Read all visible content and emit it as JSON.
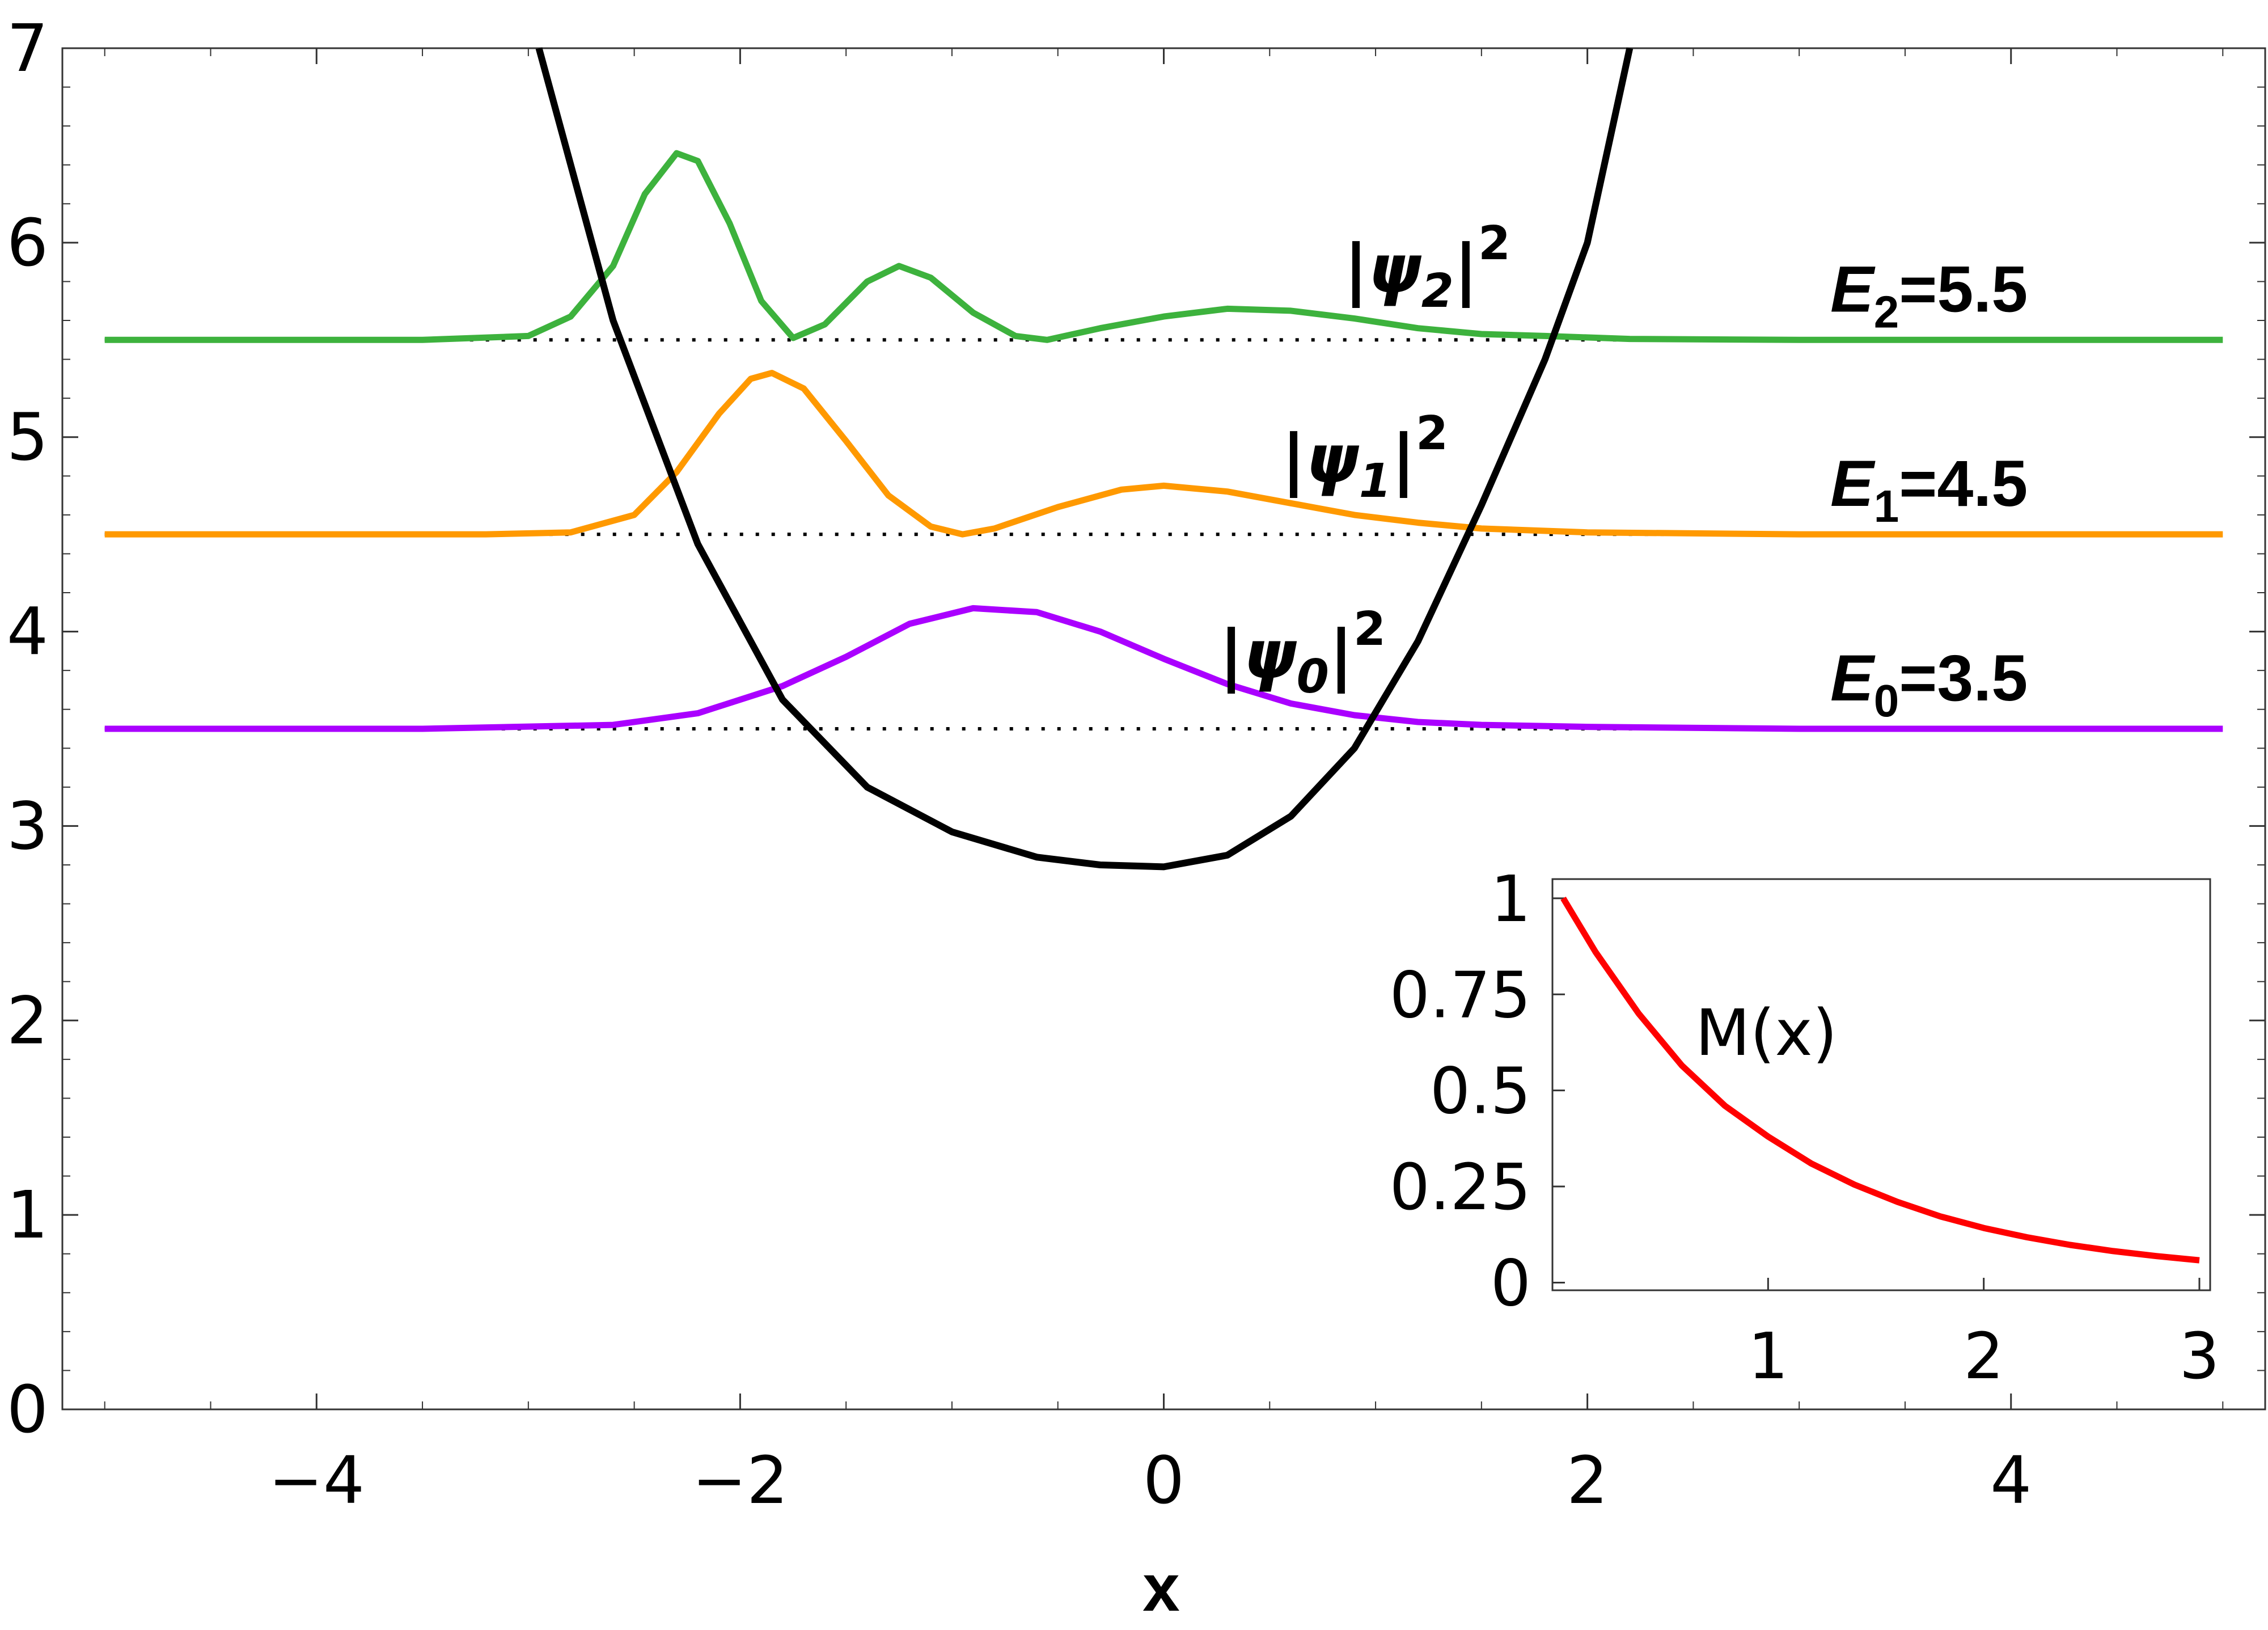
{
  "chart_data": [
    {
      "type": "line",
      "xlabel": "x",
      "xlim": [
        -5.2,
        5.2
      ],
      "ylim": [
        0,
        7
      ],
      "x_ticks": [
        "−4",
        "−2",
        "0",
        "2",
        "4"
      ],
      "y_ticks": [
        "0",
        "1",
        "2",
        "3",
        "4",
        "5",
        "6",
        "7"
      ],
      "potential": {
        "color": "#000000",
        "points": [
          [
            -2.95,
            7.0
          ],
          [
            -2.6,
            5.6
          ],
          [
            -2.2,
            4.45
          ],
          [
            -1.8,
            3.65
          ],
          [
            -1.4,
            3.2
          ],
          [
            -1.0,
            2.97
          ],
          [
            -0.6,
            2.84
          ],
          [
            -0.3,
            2.8
          ],
          [
            0.0,
            2.79
          ],
          [
            0.3,
            2.85
          ],
          [
            0.6,
            3.05
          ],
          [
            0.9,
            3.4
          ],
          [
            1.2,
            3.95
          ],
          [
            1.5,
            4.65
          ],
          [
            1.8,
            5.4
          ],
          [
            2.0,
            6.0
          ],
          [
            2.2,
            7.0
          ]
        ]
      },
      "series": [
        {
          "energy": 3.5,
          "energy_label": "E",
          "energy_sub": "0",
          "energy_value": "=3.5",
          "psi_sub": "0",
          "color": "#aa00ff",
          "points": [
            [
              -5.0,
              3.5
            ],
            [
              -3.5,
              3.5
            ],
            [
              -2.6,
              3.52
            ],
            [
              -2.2,
              3.58
            ],
            [
              -1.8,
              3.72
            ],
            [
              -1.5,
              3.87
            ],
            [
              -1.2,
              4.04
            ],
            [
              -0.9,
              4.12
            ],
            [
              -0.6,
              4.1
            ],
            [
              -0.3,
              4.0
            ],
            [
              0.0,
              3.86
            ],
            [
              0.3,
              3.73
            ],
            [
              0.6,
              3.63
            ],
            [
              0.9,
              3.57
            ],
            [
              1.2,
              3.535
            ],
            [
              1.5,
              3.52
            ],
            [
              2.0,
              3.51
            ],
            [
              3.0,
              3.5
            ],
            [
              5.0,
              3.5
            ]
          ]
        },
        {
          "energy": 4.5,
          "energy_label": "E",
          "energy_sub": "1",
          "energy_value": "=4.5",
          "psi_sub": "1",
          "color": "#ff9900",
          "points": [
            [
              -5.0,
              4.5
            ],
            [
              -3.2,
              4.5
            ],
            [
              -2.8,
              4.51
            ],
            [
              -2.5,
              4.6
            ],
            [
              -2.3,
              4.82
            ],
            [
              -2.1,
              5.12
            ],
            [
              -1.95,
              5.3
            ],
            [
              -1.85,
              5.33
            ],
            [
              -1.7,
              5.25
            ],
            [
              -1.5,
              4.98
            ],
            [
              -1.3,
              4.7
            ],
            [
              -1.1,
              4.54
            ],
            [
              -0.95,
              4.5
            ],
            [
              -0.8,
              4.53
            ],
            [
              -0.5,
              4.64
            ],
            [
              -0.2,
              4.73
            ],
            [
              0.0,
              4.75
            ],
            [
              0.3,
              4.72
            ],
            [
              0.6,
              4.66
            ],
            [
              0.9,
              4.6
            ],
            [
              1.2,
              4.56
            ],
            [
              1.5,
              4.53
            ],
            [
              2.0,
              4.51
            ],
            [
              3.0,
              4.5
            ],
            [
              5.0,
              4.5
            ]
          ]
        },
        {
          "energy": 5.5,
          "energy_label": "E",
          "energy_sub": "2",
          "energy_value": "=5.5",
          "psi_sub": "2",
          "color": "#3db23d",
          "points": [
            [
              -5.0,
              5.5
            ],
            [
              -3.5,
              5.5
            ],
            [
              -3.0,
              5.52
            ],
            [
              -2.8,
              5.62
            ],
            [
              -2.6,
              5.88
            ],
            [
              -2.45,
              6.25
            ],
            [
              -2.3,
              6.46
            ],
            [
              -2.2,
              6.42
            ],
            [
              -2.05,
              6.1
            ],
            [
              -1.9,
              5.7
            ],
            [
              -1.75,
              5.51
            ],
            [
              -1.6,
              5.58
            ],
            [
              -1.4,
              5.8
            ],
            [
              -1.25,
              5.88
            ],
            [
              -1.1,
              5.82
            ],
            [
              -0.9,
              5.64
            ],
            [
              -0.7,
              5.52
            ],
            [
              -0.55,
              5.5
            ],
            [
              -0.3,
              5.56
            ],
            [
              0.0,
              5.62
            ],
            [
              0.3,
              5.66
            ],
            [
              0.6,
              5.65
            ],
            [
              0.9,
              5.61
            ],
            [
              1.2,
              5.56
            ],
            [
              1.5,
              5.53
            ],
            [
              1.8,
              5.52
            ],
            [
              2.2,
              5.505
            ],
            [
              3.0,
              5.5
            ],
            [
              5.0,
              5.5
            ]
          ]
        }
      ]
    },
    {
      "type": "line",
      "title": "M(x)",
      "xlim": [
        0,
        3.05
      ],
      "ylim": [
        -0.02,
        1.05
      ],
      "x_ticks": [
        "1",
        "2",
        "3"
      ],
      "y_ticks": [
        "0",
        "0.25",
        "0.5",
        "0.75",
        "1"
      ],
      "series": [
        {
          "color": "#ff0000",
          "points": [
            [
              0.05,
              1.0
            ],
            [
              0.2,
              0.86
            ],
            [
              0.4,
              0.7
            ],
            [
              0.6,
              0.565
            ],
            [
              0.8,
              0.46
            ],
            [
              1.0,
              0.38
            ],
            [
              1.2,
              0.31
            ],
            [
              1.4,
              0.255
            ],
            [
              1.6,
              0.21
            ],
            [
              1.8,
              0.172
            ],
            [
              2.0,
              0.142
            ],
            [
              2.2,
              0.118
            ],
            [
              2.4,
              0.098
            ],
            [
              2.6,
              0.082
            ],
            [
              2.8,
              0.069
            ],
            [
              3.0,
              0.058
            ]
          ]
        }
      ]
    }
  ]
}
